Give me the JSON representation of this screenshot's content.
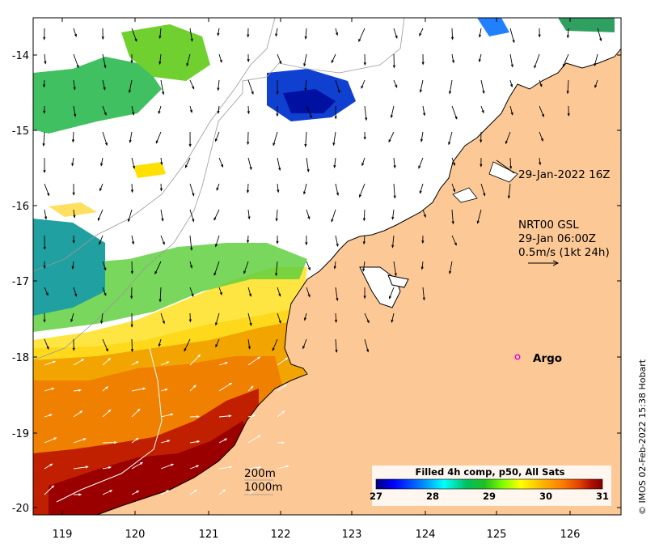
{
  "map": {
    "lon_ticks": [
      "119",
      "120",
      "121",
      "122",
      "123",
      "124",
      "125",
      "126"
    ],
    "lat_ticks": [
      "-14",
      "-15",
      "-16",
      "-17",
      "-18",
      "-19",
      "-20"
    ],
    "colors": {
      "land": "#fcc896",
      "no_data": "#ffffff",
      "coast": "#000000",
      "bathymetry_contour": "#999999"
    },
    "grid": false
  },
  "annotations": {
    "coastline_date": "29-Jan-2022 16Z",
    "current_source": "NRT00 GSL",
    "current_time": "29-Jan 06:00Z",
    "current_scale": "0.5m/s (1kt 24h)",
    "argo_label": "Argo",
    "argo_marker_color": "#e000e0"
  },
  "contour_legend": {
    "shallow": "200m",
    "deep": "1000m"
  },
  "colorbar": {
    "title": "Filled 4h comp, p50, All Sats",
    "ticks": [
      "27",
      "28",
      "29",
      "30",
      "31"
    ],
    "colors": [
      "#00007f",
      "#0000ff",
      "#007fff",
      "#00ffff",
      "#00c060",
      "#20c020",
      "#7fff00",
      "#ffff00",
      "#ffbf00",
      "#ff7f00",
      "#e04000",
      "#b01000",
      "#800000"
    ]
  },
  "credit": "© IMOS 02-Feb-2022 15:38 Hobart"
}
